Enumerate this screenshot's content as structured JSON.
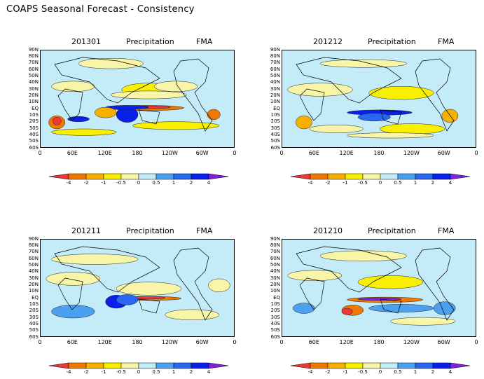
{
  "title": "COAPS Seasonal Forecast - Consistency",
  "panels": [
    {
      "code": "201301",
      "variable": "Precipitation",
      "season": "FMA"
    },
    {
      "code": "201212",
      "variable": "Precipitation",
      "season": "FMA"
    },
    {
      "code": "201211",
      "variable": "Precipitation",
      "season": "FMA"
    },
    {
      "code": "201210",
      "variable": "Precipitation",
      "season": "FMA"
    }
  ],
  "lat_labels": [
    "90N",
    "80N",
    "70N",
    "60N",
    "50N",
    "40N",
    "30N",
    "20N",
    "10N",
    "EQ",
    "10S",
    "20S",
    "30S",
    "40S",
    "50S",
    "60S"
  ],
  "lon_labels": [
    "0",
    "60E",
    "120E",
    "180",
    "120W",
    "60W",
    "0"
  ],
  "colorbar": {
    "labels": [
      "-4",
      "-2",
      "-1",
      "-0.5",
      "0",
      "0.5",
      "1",
      "2",
      "4"
    ],
    "colors": [
      "#f03838",
      "#f07800",
      "#f8b000",
      "#f8f000",
      "#f8f4a8",
      "#c4ecf8",
      "#4ca0f0",
      "#2868f0",
      "#0820e8",
      "#8020e0"
    ]
  }
}
